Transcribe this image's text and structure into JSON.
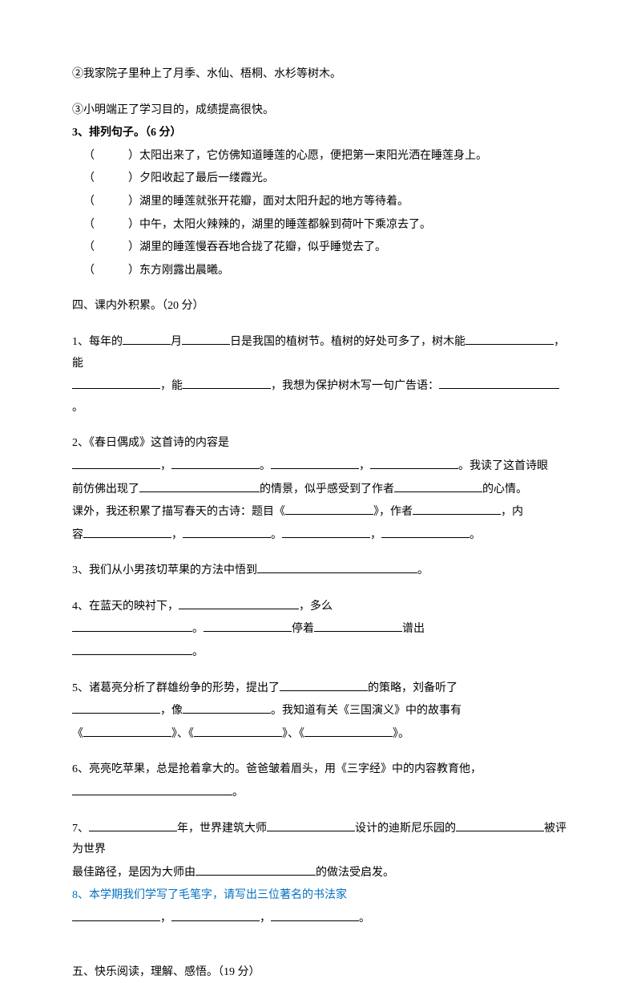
{
  "q2a": "②我家院子里种上了月季、水仙、梧桐、水杉等树木。",
  "q2b": " ③小明端正了学习目的，成绩提高很快。",
  "q3": {
    "title": "3、排列句子。（6 分）",
    "items": [
      "太阳出来了，它仿佛知道睡莲的心愿，便把第一束阳光洒在睡莲身上。",
      "夕阳收起了最后一缕霞光。",
      "湖里的睡莲就张开花瓣，面对太阳升起的地方等待着。",
      "中午，太阳火辣辣的，湖里的睡莲都躲到荷叶下乘凉去了。",
      "湖里的睡莲慢吞吞地合拢了花瓣，似乎睡觉去了。",
      "东方刚露出晨曦。"
    ]
  },
  "sec4": {
    "title": "四、课内外积累。（20 分）",
    "q1a": "1、每年的",
    "q1b": "月",
    "q1c": "日是我国的植树节。植树的好处可多了，树木能",
    "q1d": "，能",
    "q1e": "，能",
    "q1f": "，我想为保护树木写一句广告语：",
    "q2a": "2、《春日偶成》这首诗的内容是",
    "q2b": "，",
    "q2c": "。",
    "q2d": "，",
    "q2e": "。我读了这首诗眼",
    "q2f": "前仿佛出现了",
    "q2g": "的情景，似乎感受到了作者",
    "q2h": "的心情。",
    "q2i": "课外，我还积累了描写春天的古诗：题目《",
    "q2j": "》，作者",
    "q2k": "，内",
    "q2l": "容",
    "q2m": "，",
    "q2n": "。",
    "q2o": "，",
    "q2p": "。",
    "q3a": "3、我们从小男孩切苹果的方法中悟到",
    "q3b": "。",
    "q4a": "4、在蓝天的映衬下，",
    "q4b": "，多么",
    "q4c": "。",
    "q4d": "停着",
    "q4e": "谱出",
    "q4f": "。",
    "q5a": "5、诸葛亮分析了群雄纷争的形势，提出了",
    "q5b": "的策略，刘备听了",
    "q5c": "，像",
    "q5d": "。我知道有关《三国演义》中的故事有",
    "q5e": "《",
    "q5f": "》、《",
    "q5g": "》、《",
    "q5h": "》。",
    "q6a": "6、亮亮吃苹果，总是抢着拿大的。爸爸皱着眉头，用《三字经》中的内容教育他，",
    "q6b": "。",
    "q7a": "7、",
    "q7b": "年，世界建筑大师",
    "q7c": "设计的迪斯尼乐园的",
    "q7d": "被评为世界",
    "q7e": "最佳路径，是因为大师由",
    "q7f": "的做法受启发。",
    "q8a": "8、本学期我们学写了毛笔字，请写出三位著名的书法家",
    "q8b": "，",
    "q8c": "，",
    "q8d": "。"
  },
  "sec5": "五、快乐阅读，理解、感悟。（19 分）"
}
